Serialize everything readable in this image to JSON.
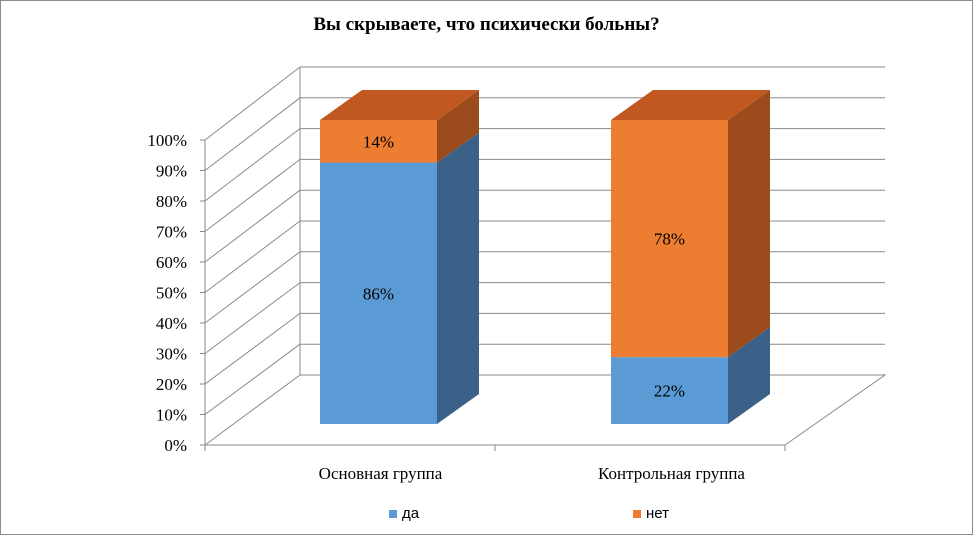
{
  "chart_data": {
    "type": "bar",
    "stacked": true,
    "three_d": true,
    "title": "Вы скрываете, что психически больны?",
    "categories": [
      "Основная группа",
      "Контрольная группа"
    ],
    "series": [
      {
        "name": "да",
        "values": [
          86,
          22
        ],
        "labels": [
          "86%",
          "22%"
        ],
        "color": "#5b9bd5"
      },
      {
        "name": "нет",
        "values": [
          14,
          78
        ],
        "labels": [
          "14%",
          "78%"
        ],
        "color": "#ed7d31"
      }
    ],
    "ylim": [
      0,
      100
    ],
    "yticks": [
      "0%",
      "10%",
      "20%",
      "30%",
      "40%",
      "50%",
      "60%",
      "70%",
      "80%",
      "90%",
      "100%"
    ],
    "grid": true,
    "legend_position": "bottom"
  }
}
